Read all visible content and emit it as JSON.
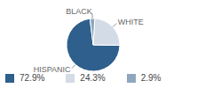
{
  "chart_data": {
    "type": "pie",
    "categories": [
      "HISPANIC",
      "WHITE",
      "BLACK"
    ],
    "values": [
      72.9,
      24.3,
      2.9
    ],
    "value_labels": [
      "72.9%",
      "24.3%",
      "2.9%"
    ],
    "colors": [
      "#2f5f8c",
      "#d3dbe6",
      "#8ea7be"
    ],
    "legend": "bottom"
  }
}
